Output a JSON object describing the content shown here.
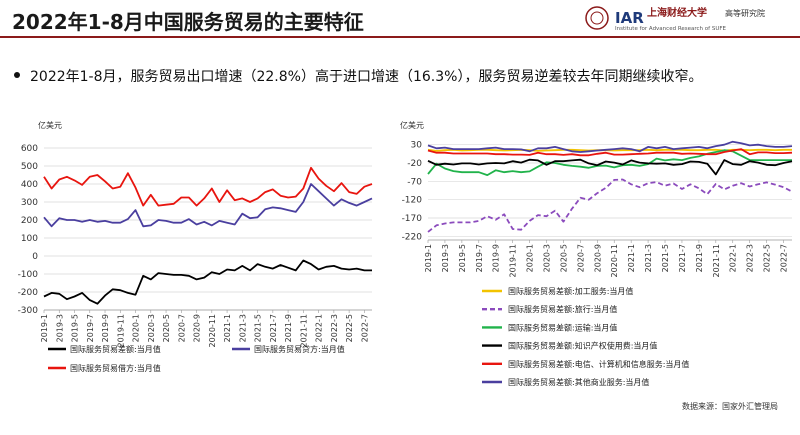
{
  "header": {
    "title": "2022年1-8月中国服务贸易的主要特征",
    "logo_cn": "上海财经大学",
    "logo_cn_sub": "高等研究院",
    "logo_en": "Institute for Advanced Research of SUFE",
    "logo_mark": "IAR"
  },
  "bullet": "2022年1-8月，服务贸易出口增速（22.8%）高于进口增速（16.3%），服务贸易逆差较去年同期继续收窄。",
  "source": "数据来源：国家外汇管理局",
  "colors": {
    "black": "#000000",
    "blue": "#4a3f9f",
    "red": "#e8150f",
    "yellow": "#f2c300",
    "purple": "#8b4bbd",
    "green": "#21b34b",
    "grid": "#d9d9d9"
  },
  "chart_data": [
    {
      "type": "line",
      "unit_label": "亿美元",
      "ylim": [
        -300,
        600
      ],
      "yticks": [
        "600",
        "500",
        "400",
        "300",
        "200",
        "100",
        "0",
        "-100",
        "-200",
        "-300"
      ],
      "xtick_labels": [
        "2019-1",
        "2019-3",
        "2019-5",
        "2019-7",
        "2019-9",
        "2019-11",
        "2020-1",
        "2020-3",
        "2020-5",
        "2020-7",
        "2020-9",
        "2020-11",
        "2021-1",
        "2021-3",
        "2021-5",
        "2021-7",
        "2021-9",
        "2021-11",
        "2022-1",
        "2022-3",
        "2022-5",
        "2022-7"
      ],
      "series": [
        {
          "name": "国际服务贸易差额:当月值",
          "color": "#000000",
          "values": [
            -225,
            -205,
            -210,
            -240,
            -225,
            -205,
            -245,
            -265,
            -220,
            -185,
            -190,
            -205,
            -215,
            -110,
            -130,
            -95,
            -100,
            -105,
            -105,
            -110,
            -130,
            -120,
            -90,
            -100,
            -75,
            -80,
            -55,
            -80,
            -45,
            -60,
            -70,
            -50,
            -65,
            -80,
            -25,
            -45,
            -75,
            -60,
            -55,
            -70,
            -75,
            -70,
            -80,
            -80
          ]
        },
        {
          "name": "国际服务贸易贷方:当月值",
          "color": "#4a3f9f",
          "values": [
            215,
            165,
            210,
            200,
            200,
            190,
            200,
            190,
            195,
            185,
            185,
            205,
            255,
            165,
            170,
            200,
            195,
            185,
            185,
            205,
            175,
            190,
            170,
            195,
            185,
            175,
            235,
            210,
            215,
            260,
            270,
            265,
            255,
            245,
            300,
            400,
            360,
            320,
            280,
            315,
            295,
            280,
            300,
            320
          ]
        },
        {
          "name": "国际服务贸易借方:当月值",
          "color": "#e8150f",
          "values": [
            440,
            375,
            425,
            440,
            420,
            395,
            440,
            450,
            415,
            375,
            385,
            460,
            380,
            280,
            340,
            280,
            285,
            290,
            325,
            325,
            280,
            320,
            375,
            300,
            365,
            310,
            320,
            300,
            320,
            355,
            370,
            335,
            325,
            330,
            375,
            490,
            430,
            390,
            360,
            405,
            355,
            345,
            385,
            400
          ]
        }
      ]
    },
    {
      "type": "line",
      "unit_label": "亿美元",
      "ylim": [
        -230,
        40
      ],
      "yticks": [
        "30",
        "-20",
        "-70",
        "-120",
        "-170",
        "-220"
      ],
      "xtick_labels": [
        "2019-1",
        "2019-3",
        "2019-5",
        "2019-7",
        "2019-9",
        "2019-11",
        "2020-1",
        "2020-3",
        "2020-5",
        "2020-7",
        "2020-9",
        "2020-11",
        "2021-1",
        "2021-3",
        "2021-5",
        "2021-7",
        "2021-9",
        "2021-11",
        "2022-1",
        "2022-3",
        "2022-5",
        "2022-7"
      ],
      "series": [
        {
          "name": "国际服务贸易差额:加工服务:当月值",
          "color": "#f2c300",
          "dashed": false,
          "values": [
            16,
            13,
            15,
            16,
            14,
            15,
            16,
            16,
            15,
            14,
            15,
            16,
            15,
            13,
            14,
            15,
            16,
            16,
            15,
            14,
            15,
            15,
            14,
            15,
            15,
            15,
            16,
            15,
            16,
            16,
            16,
            15,
            15,
            16,
            16,
            14,
            16,
            16,
            15,
            16,
            16,
            15,
            16,
            16
          ]
        },
        {
          "name": "国际服务贸易差额:旅行:当月值",
          "color": "#8b4bbd",
          "dashed": true,
          "values": [
            -208,
            -190,
            -185,
            -182,
            -182,
            -182,
            -178,
            -165,
            -175,
            -160,
            -200,
            -202,
            -178,
            -162,
            -165,
            -150,
            -180,
            -145,
            -115,
            -120,
            -102,
            -88,
            -66,
            -65,
            -78,
            -86,
            -75,
            -72,
            -82,
            -76,
            -91,
            -78,
            -89,
            -105,
            -77,
            -92,
            -82,
            -75,
            -84,
            -78,
            -73,
            -79,
            -86,
            -98
          ]
        },
        {
          "name": "国际服务贸易差额:运输:当月值",
          "color": "#21b34b",
          "dashed": false,
          "values": [
            -50,
            -22,
            -35,
            -42,
            -45,
            -45,
            -45,
            -53,
            -40,
            -45,
            -42,
            -45,
            -43,
            -30,
            -18,
            -20,
            -25,
            -28,
            -30,
            -33,
            -28,
            -27,
            -32,
            -26,
            -25,
            -28,
            -23,
            -8,
            -13,
            -10,
            -12,
            -6,
            -2,
            5,
            10,
            15,
            12,
            0,
            -12,
            -12,
            -12,
            -12,
            -12,
            -12
          ]
        },
        {
          "name": "国际服务贸易差额:知识产权使用费:当月值",
          "color": "#000000",
          "dashed": false,
          "values": [
            -14,
            -25,
            -22,
            -24,
            -21,
            -21,
            -24,
            -21,
            -20,
            -21,
            -15,
            -19,
            -11,
            -13,
            -25,
            -15,
            -15,
            -13,
            -11,
            -21,
            -26,
            -16,
            -19,
            -24,
            -13,
            -19,
            -21,
            -22,
            -21,
            -25,
            -23,
            -16,
            -17,
            -22,
            -51,
            -12,
            -23,
            -25,
            -15,
            -19,
            -25,
            -26,
            -20,
            -15
          ]
        },
        {
          "name": "国际服务贸易差额:电信、计算机和信息服务:当月值",
          "color": "#e8150f",
          "dashed": false,
          "values": [
            14,
            8,
            8,
            6,
            6,
            6,
            6,
            6,
            4,
            4,
            3,
            3,
            2,
            8,
            4,
            4,
            2,
            4,
            1,
            1,
            5,
            8,
            3,
            3,
            4,
            5,
            6,
            8,
            8,
            8,
            5,
            6,
            5,
            4,
            4,
            10,
            14,
            18,
            4,
            9,
            9,
            7,
            7,
            8
          ]
        },
        {
          "name": "国际服务贸易差额:其他商业服务:当月值",
          "color": "#4a3f9f",
          "dashed": false,
          "values": [
            28,
            20,
            22,
            18,
            18,
            18,
            18,
            20,
            22,
            18,
            18,
            17,
            12,
            20,
            20,
            24,
            18,
            12,
            10,
            12,
            14,
            16,
            18,
            20,
            18,
            12,
            24,
            20,
            24,
            18,
            20,
            22,
            24,
            20,
            26,
            30,
            38,
            34,
            28,
            30,
            26,
            24,
            24,
            26
          ]
        }
      ]
    }
  ]
}
